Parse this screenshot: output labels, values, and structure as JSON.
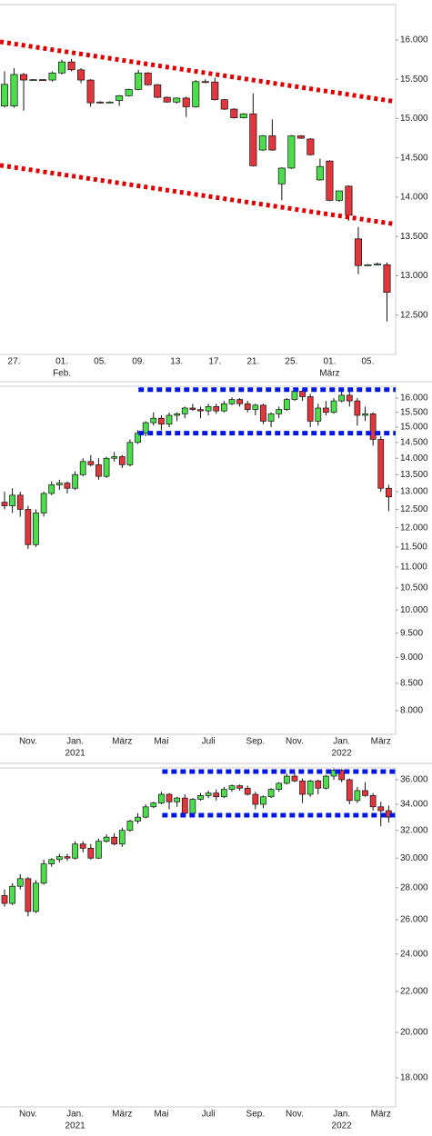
{
  "chart_data": [
    {
      "type": "candlestick",
      "log_scale": false,
      "up_color": "#4cdc4c",
      "down_color": "#e0363c",
      "line_color": "#e00000",
      "categories": [
        null,
        "27.",
        null,
        null,
        null,
        null,
        "01.",
        null,
        null,
        null,
        "05.",
        null,
        null,
        null,
        "09.",
        null,
        null,
        null,
        "13.",
        null,
        null,
        null,
        "17.",
        null,
        null,
        null,
        "21.",
        null,
        null,
        null,
        "25.",
        null,
        null,
        null,
        "01.",
        null,
        null,
        null,
        "05.",
        null,
        null
      ],
      "x_sublabels": [
        null,
        null,
        null,
        null,
        null,
        null,
        "Feb.",
        null,
        null,
        null,
        null,
        null,
        null,
        null,
        null,
        null,
        null,
        null,
        null,
        null,
        null,
        null,
        null,
        null,
        null,
        null,
        null,
        null,
        null,
        null,
        null,
        null,
        null,
        null,
        "März",
        null,
        null,
        null,
        null,
        null,
        null
      ],
      "open": [
        15160,
        15160,
        15560,
        15490,
        15495,
        15490,
        15580,
        15720,
        15620,
        15490,
        15210,
        15205,
        15230,
        15290,
        15370,
        15580,
        15430,
        15270,
        15210,
        15260,
        15150,
        15470,
        15465,
        15240,
        15120,
        15010,
        15060,
        14600,
        14780,
        14170,
        14370,
        14780,
        14740,
        14220,
        14460,
        13960,
        14140,
        13470,
        13140,
        13150,
        13140
      ],
      "high": [
        15600,
        15640,
        15580,
        15500,
        15500,
        15600,
        15750,
        15760,
        15640,
        15500,
        15220,
        15220,
        15300,
        15380,
        15620,
        15590,
        15440,
        15280,
        15270,
        15280,
        15490,
        15500,
        15520,
        15250,
        15130,
        15070,
        15320,
        14790,
        14990,
        14380,
        14790,
        14790,
        14750,
        14490,
        14470,
        14080,
        14150,
        13620,
        13150,
        13170,
        13170
      ],
      "low": [
        15140,
        15140,
        15100,
        15480,
        15480,
        15470,
        15560,
        15600,
        15450,
        15150,
        15190,
        15200,
        15160,
        15280,
        15360,
        15420,
        15260,
        15200,
        15190,
        15020,
        15140,
        15450,
        15230,
        15110,
        15000,
        15000,
        14390,
        14590,
        14590,
        13960,
        14360,
        14740,
        14530,
        14210,
        13950,
        13940,
        13700,
        13020,
        13130,
        13130,
        12420
      ],
      "close": [
        15435,
        15560,
        15490,
        15495,
        15490,
        15580,
        15720,
        15620,
        15490,
        15200,
        15205,
        15210,
        15290,
        15370,
        15580,
        15430,
        15270,
        15210,
        15260,
        15150,
        15470,
        15465,
        15240,
        15120,
        15010,
        15060,
        14400,
        14780,
        14600,
        14370,
        14780,
        14750,
        14540,
        14390,
        13960,
        14080,
        13770,
        13130,
        13140,
        13150,
        12790
      ],
      "ylim": [
        12000,
        16450
      ],
      "yticks": [
        {
          "value": 12500,
          "label": "12.500"
        },
        {
          "value": 13000,
          "label": "13.000"
        },
        {
          "value": 13500,
          "label": "13.500"
        },
        {
          "value": 14000,
          "label": "14.000"
        },
        {
          "value": 14500,
          "label": "14.500"
        },
        {
          "value": 15000,
          "label": "15.000"
        },
        {
          "value": 15500,
          "label": "15.500"
        },
        {
          "value": 16000,
          "label": "16.000"
        }
      ],
      "lines": [
        {
          "values": [
            15977,
            15215
          ]
        },
        {
          "values": [
            14406,
            13656
          ]
        }
      ]
    },
    {
      "type": "candlestick",
      "log_scale": true,
      "up_color": "#4cdc4c",
      "down_color": "#e0363c",
      "line_color": "#0018e0",
      "categories": [
        null,
        null,
        null,
        "Nov.",
        null,
        null,
        null,
        null,
        null,
        "Jan.",
        null,
        null,
        null,
        null,
        null,
        "März",
        null,
        null,
        null,
        null,
        "Mai",
        null,
        null,
        null,
        null,
        null,
        "Juli",
        null,
        null,
        null,
        null,
        null,
        "Sep.",
        null,
        null,
        null,
        null,
        "Nov.",
        null,
        null,
        null,
        null,
        null,
        "Jan.",
        null,
        null,
        null,
        null,
        "März",
        null
      ],
      "x_sublabels": [
        null,
        null,
        null,
        null,
        null,
        null,
        null,
        null,
        null,
        "2021",
        null,
        null,
        null,
        null,
        null,
        null,
        null,
        null,
        null,
        null,
        null,
        null,
        null,
        null,
        null,
        null,
        null,
        null,
        null,
        null,
        null,
        null,
        null,
        null,
        null,
        null,
        null,
        null,
        null,
        null,
        null,
        null,
        null,
        "2022",
        null,
        null,
        null,
        null,
        null,
        null
      ],
      "open": [
        12700,
        12600,
        12900,
        12500,
        11560,
        12400,
        12950,
        13200,
        13250,
        13100,
        13500,
        13900,
        13800,
        13450,
        14000,
        14050,
        13800,
        14500,
        14800,
        15150,
        15300,
        15100,
        15400,
        15450,
        15650,
        15600,
        15550,
        15700,
        15550,
        15800,
        15950,
        15800,
        15600,
        15750,
        15200,
        15450,
        15600,
        15950,
        16250,
        16050,
        15200,
        15650,
        15500,
        15900,
        16100,
        15900,
        15400,
        15450,
        14600,
        13100
      ],
      "high": [
        13000,
        13100,
        13000,
        12600,
        12500,
        13000,
        13300,
        13350,
        13300,
        13600,
        14000,
        14100,
        14000,
        14050,
        14200,
        14100,
        14600,
        14900,
        15200,
        15500,
        15400,
        15500,
        15500,
        15700,
        15800,
        15700,
        15800,
        15800,
        15900,
        16030,
        16000,
        15900,
        15800,
        15800,
        15500,
        15700,
        16000,
        16300,
        16300,
        16150,
        15800,
        15900,
        16000,
        16250,
        16300,
        16000,
        15700,
        15500,
        14700,
        13200
      ],
      "low": [
        12500,
        12400,
        12300,
        11450,
        11500,
        12300,
        12900,
        13050,
        12950,
        13050,
        13450,
        13750,
        13350,
        13400,
        13900,
        13700,
        13750,
        14450,
        14700,
        15050,
        14900,
        15000,
        15200,
        15300,
        15550,
        15300,
        15400,
        15450,
        15500,
        15750,
        15700,
        15500,
        15400,
        15100,
        15000,
        15300,
        15550,
        15900,
        15900,
        15000,
        15050,
        15400,
        15450,
        15850,
        15700,
        15050,
        15200,
        14400,
        13000,
        12450
      ],
      "close": [
        12600,
        12900,
        12500,
        11560,
        12400,
        12950,
        13200,
        13250,
        13100,
        13500,
        13900,
        13800,
        13450,
        14000,
        14050,
        13800,
        14500,
        14800,
        15150,
        15300,
        15100,
        15400,
        15450,
        15650,
        15600,
        15550,
        15700,
        15550,
        15800,
        15950,
        15800,
        15600,
        15750,
        15200,
        15450,
        15600,
        15950,
        16250,
        16050,
        15200,
        15650,
        15500,
        15900,
        16100,
        15900,
        15400,
        15450,
        14600,
        13100,
        12850
      ],
      "ylim": [
        7590,
        16425
      ],
      "yticks": [
        {
          "value": 8000,
          "label": "8.000"
        },
        {
          "value": 8500,
          "label": "8.500"
        },
        {
          "value": 9000,
          "label": "9.000"
        },
        {
          "value": 9500,
          "label": "9.500"
        },
        {
          "value": 10000,
          "label": "10.000"
        },
        {
          "value": 10500,
          "label": "10.500"
        },
        {
          "value": 11000,
          "label": "11.000"
        },
        {
          "value": 11500,
          "label": "11.500"
        },
        {
          "value": 12000,
          "label": "12.000"
        },
        {
          "value": 12500,
          "label": "12.500"
        },
        {
          "value": 13000,
          "label": "13.000"
        },
        {
          "value": 13500,
          "label": "13.500"
        },
        {
          "value": 14000,
          "label": "14.000"
        },
        {
          "value": 14500,
          "label": "14.500"
        },
        {
          "value": 15000,
          "label": "15.000"
        },
        {
          "value": 15500,
          "label": "15.500"
        },
        {
          "value": 16000,
          "label": "16.000"
        }
      ],
      "lines": [
        {
          "values": [
            16300,
            16300
          ]
        },
        {
          "values": [
            14800,
            14800
          ]
        }
      ]
    },
    {
      "type": "candlestick",
      "log_scale": true,
      "up_color": "#4cdc4c",
      "down_color": "#e0363c",
      "line_color": "#0018e0",
      "categories": [
        null,
        null,
        null,
        "Nov.",
        null,
        null,
        null,
        null,
        null,
        "Jan.",
        null,
        null,
        null,
        null,
        null,
        "März",
        null,
        null,
        null,
        null,
        "Mai",
        null,
        null,
        null,
        null,
        null,
        "Juli",
        null,
        null,
        null,
        null,
        null,
        "Sep.",
        null,
        null,
        null,
        null,
        "Nov.",
        null,
        null,
        null,
        null,
        null,
        "Jan.",
        null,
        null,
        null,
        null,
        "März",
        null
      ],
      "x_sublabels": [
        null,
        null,
        null,
        null,
        null,
        null,
        null,
        null,
        null,
        "2021",
        null,
        null,
        null,
        null,
        null,
        null,
        null,
        null,
        null,
        null,
        null,
        null,
        null,
        null,
        null,
        null,
        null,
        null,
        null,
        null,
        null,
        null,
        null,
        null,
        null,
        null,
        null,
        null,
        null,
        null,
        null,
        null,
        null,
        "2022",
        null,
        null,
        null,
        null,
        null,
        null
      ],
      "open": [
        27500,
        27000,
        28100,
        28600,
        26500,
        28300,
        29600,
        29900,
        30100,
        30000,
        31000,
        30700,
        30000,
        31200,
        31500,
        31000,
        32000,
        32700,
        33000,
        33800,
        34100,
        34800,
        34200,
        34500,
        33300,
        34400,
        34700,
        34900,
        34600,
        35200,
        35500,
        35300,
        34800,
        34000,
        34600,
        35200,
        35700,
        36300,
        35900,
        34800,
        35900,
        35300,
        36300,
        36800,
        36000,
        34300,
        35100,
        34700,
        33800,
        33500
      ],
      "high": [
        27900,
        28300,
        28900,
        28700,
        28500,
        29900,
        30000,
        30300,
        30300,
        31200,
        31200,
        31000,
        31400,
        31700,
        31800,
        32200,
        32800,
        33300,
        34000,
        34200,
        35000,
        34900,
        34600,
        34800,
        34500,
        34900,
        35100,
        35200,
        35400,
        35600,
        35600,
        35500,
        35000,
        34700,
        35300,
        35800,
        36500,
        36600,
        36100,
        36000,
        36000,
        36400,
        36950,
        36900,
        36100,
        35400,
        35800,
        34900,
        34200,
        33900
      ],
      "low": [
        26800,
        26900,
        27900,
        26200,
        26400,
        28200,
        29400,
        29700,
        29800,
        29900,
        30400,
        29900,
        29950,
        31100,
        30900,
        30800,
        31900,
        32500,
        32900,
        33700,
        34000,
        33600,
        33800,
        33200,
        33200,
        34300,
        34500,
        34300,
        34500,
        35000,
        35100,
        34700,
        33600,
        33700,
        34500,
        35000,
        35600,
        35800,
        34100,
        34600,
        34800,
        35200,
        36000,
        35800,
        34000,
        34100,
        34600,
        33500,
        32300,
        32600
      ],
      "close": [
        27000,
        28100,
        28600,
        26500,
        28300,
        29600,
        29900,
        30100,
        30000,
        31000,
        30700,
        30000,
        31200,
        31500,
        31000,
        32000,
        32700,
        33000,
        33800,
        34100,
        34800,
        34200,
        34500,
        33300,
        34400,
        34700,
        34900,
        34600,
        35200,
        35500,
        35300,
        34800,
        34000,
        34600,
        35200,
        35700,
        36300,
        35900,
        34800,
        35900,
        35300,
        36300,
        36800,
        36000,
        34300,
        35100,
        34700,
        33800,
        33500,
        33000
      ],
      "ylim": [
        16820,
        37000
      ],
      "yticks": [
        {
          "value": 18000,
          "label": "18.000"
        },
        {
          "value": 20000,
          "label": "20.000"
        },
        {
          "value": 22000,
          "label": "22.000"
        },
        {
          "value": 24000,
          "label": "24.000"
        },
        {
          "value": 26000,
          "label": "26.000"
        },
        {
          "value": 28000,
          "label": "28.000"
        },
        {
          "value": 30000,
          "label": "30.000"
        },
        {
          "value": 32000,
          "label": "32.000"
        },
        {
          "value": 34000,
          "label": "34.000"
        },
        {
          "value": 36000,
          "label": "36.000"
        }
      ],
      "lines": [
        {
          "values": [
            36690,
            36690
          ]
        },
        {
          "values": [
            33150,
            33150
          ]
        }
      ]
    }
  ]
}
